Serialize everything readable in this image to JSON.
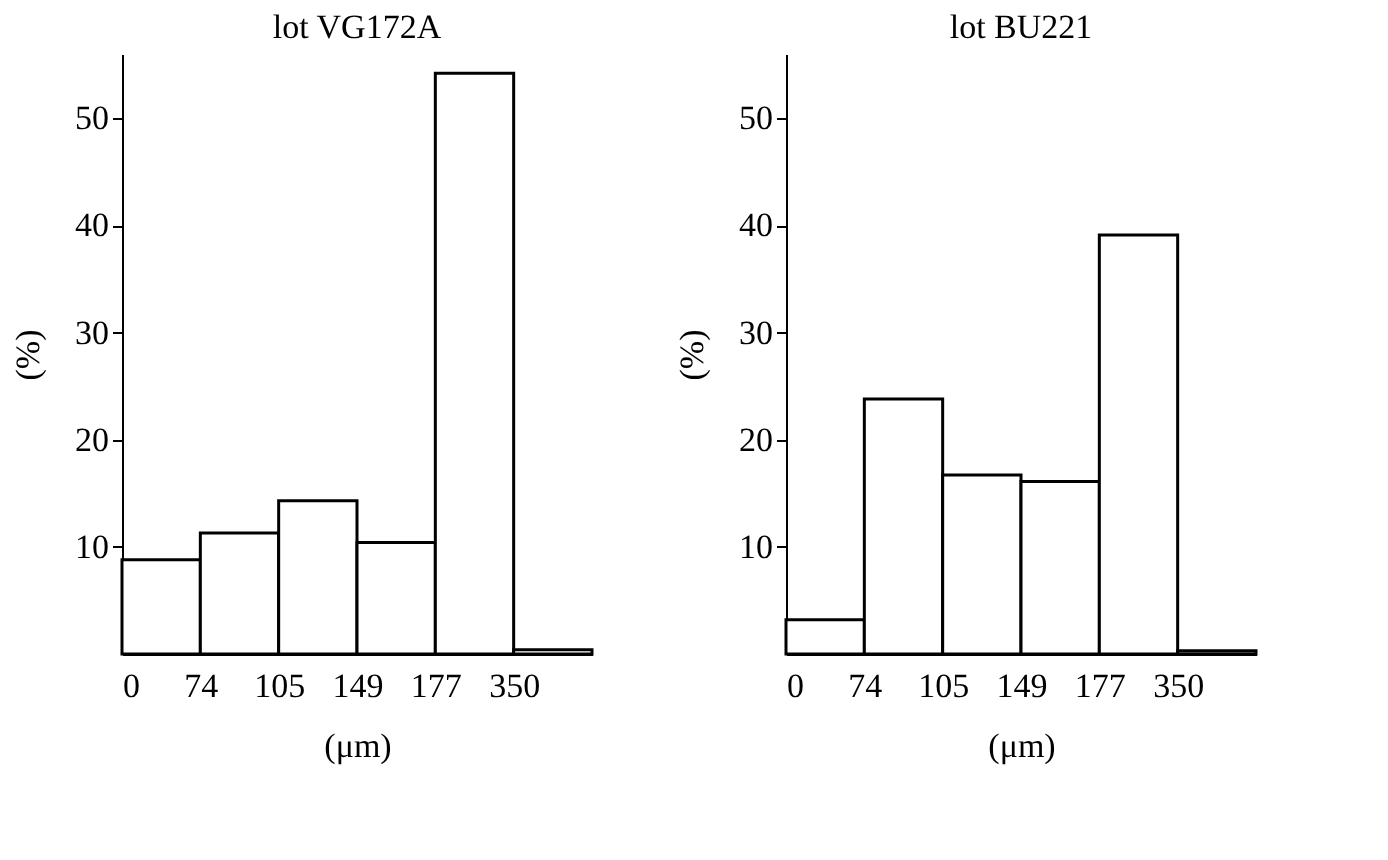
{
  "chart_data": [
    {
      "type": "bar",
      "title": "lot VG172A",
      "xlabel": "(μm)",
      "ylabel": "(%)",
      "categories": [
        null,
        null,
        null,
        null,
        null,
        null
      ],
      "values": [
        8.8,
        11.3,
        14.3,
        10.4,
        54.2,
        0.4
      ],
      "color": "#ffffff",
      "ylim": [
        0,
        56
      ],
      "yticks": [
        10,
        20,
        30,
        40,
        50
      ],
      "grid": false,
      "annotations": [
        "0",
        "74",
        "105",
        "149",
        "177",
        "350"
      ]
    },
    {
      "type": "bar",
      "title": "lot BU221",
      "xlabel": "(μm)",
      "ylabel": "(%)",
      "categories": [
        null,
        null,
        null,
        null,
        null,
        null
      ],
      "values": [
        3.2,
        23.8,
        16.7,
        16.1,
        39.1,
        0.3
      ],
      "color": "#ffffff",
      "ylim": [
        0,
        56
      ],
      "yticks": [
        10,
        20,
        30,
        40,
        50
      ],
      "grid": false,
      "annotations": [
        "0",
        "74",
        "105",
        "149",
        "177",
        "350"
      ]
    }
  ]
}
